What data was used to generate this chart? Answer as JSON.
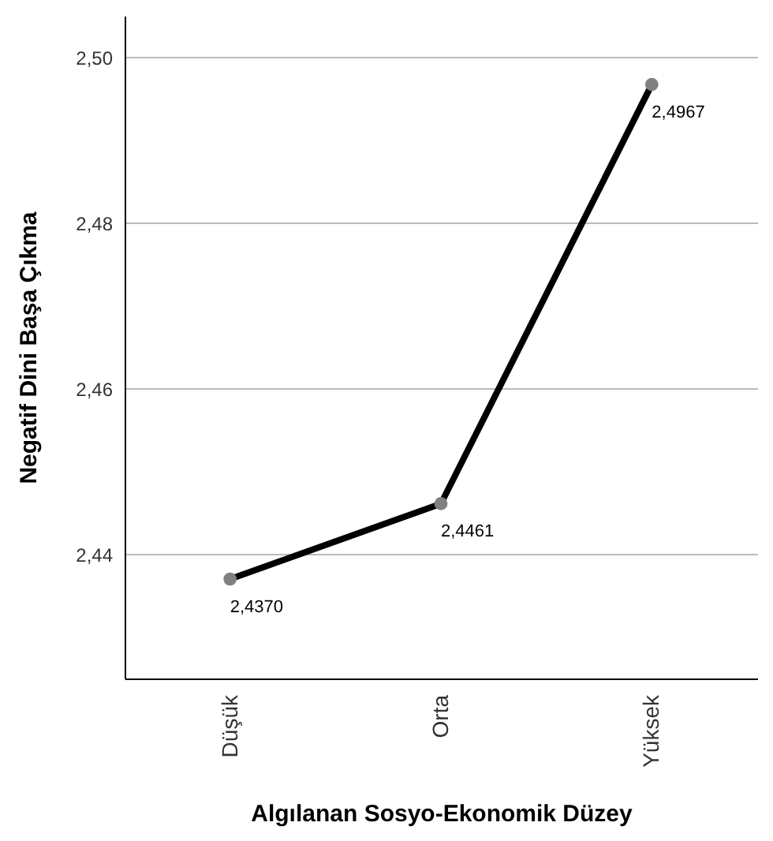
{
  "chart_data": {
    "type": "line",
    "xlabel": "Algılanan Sosyo-Ekonomik Düzey",
    "ylabel": "Negatif Dini Başa Çıkma",
    "categories": [
      "Düşük",
      "Orta",
      "Yüksek"
    ],
    "series": [
      {
        "color": "#000000",
        "values": [
          2.437,
          2.4461,
          2.4967
        ],
        "value_labels": [
          "2,4370",
          "2,4461",
          "2,4967"
        ]
      }
    ],
    "ylim": [
      2.425,
      2.505
    ],
    "yticks": [
      {
        "value": 2.44,
        "label": "2,44"
      },
      {
        "value": 2.46,
        "label": "2,46"
      },
      {
        "value": 2.48,
        "label": "2,48"
      },
      {
        "value": 2.5,
        "label": "2,50"
      }
    ],
    "grid": "y",
    "marker": "circle",
    "line_style": "solid"
  }
}
